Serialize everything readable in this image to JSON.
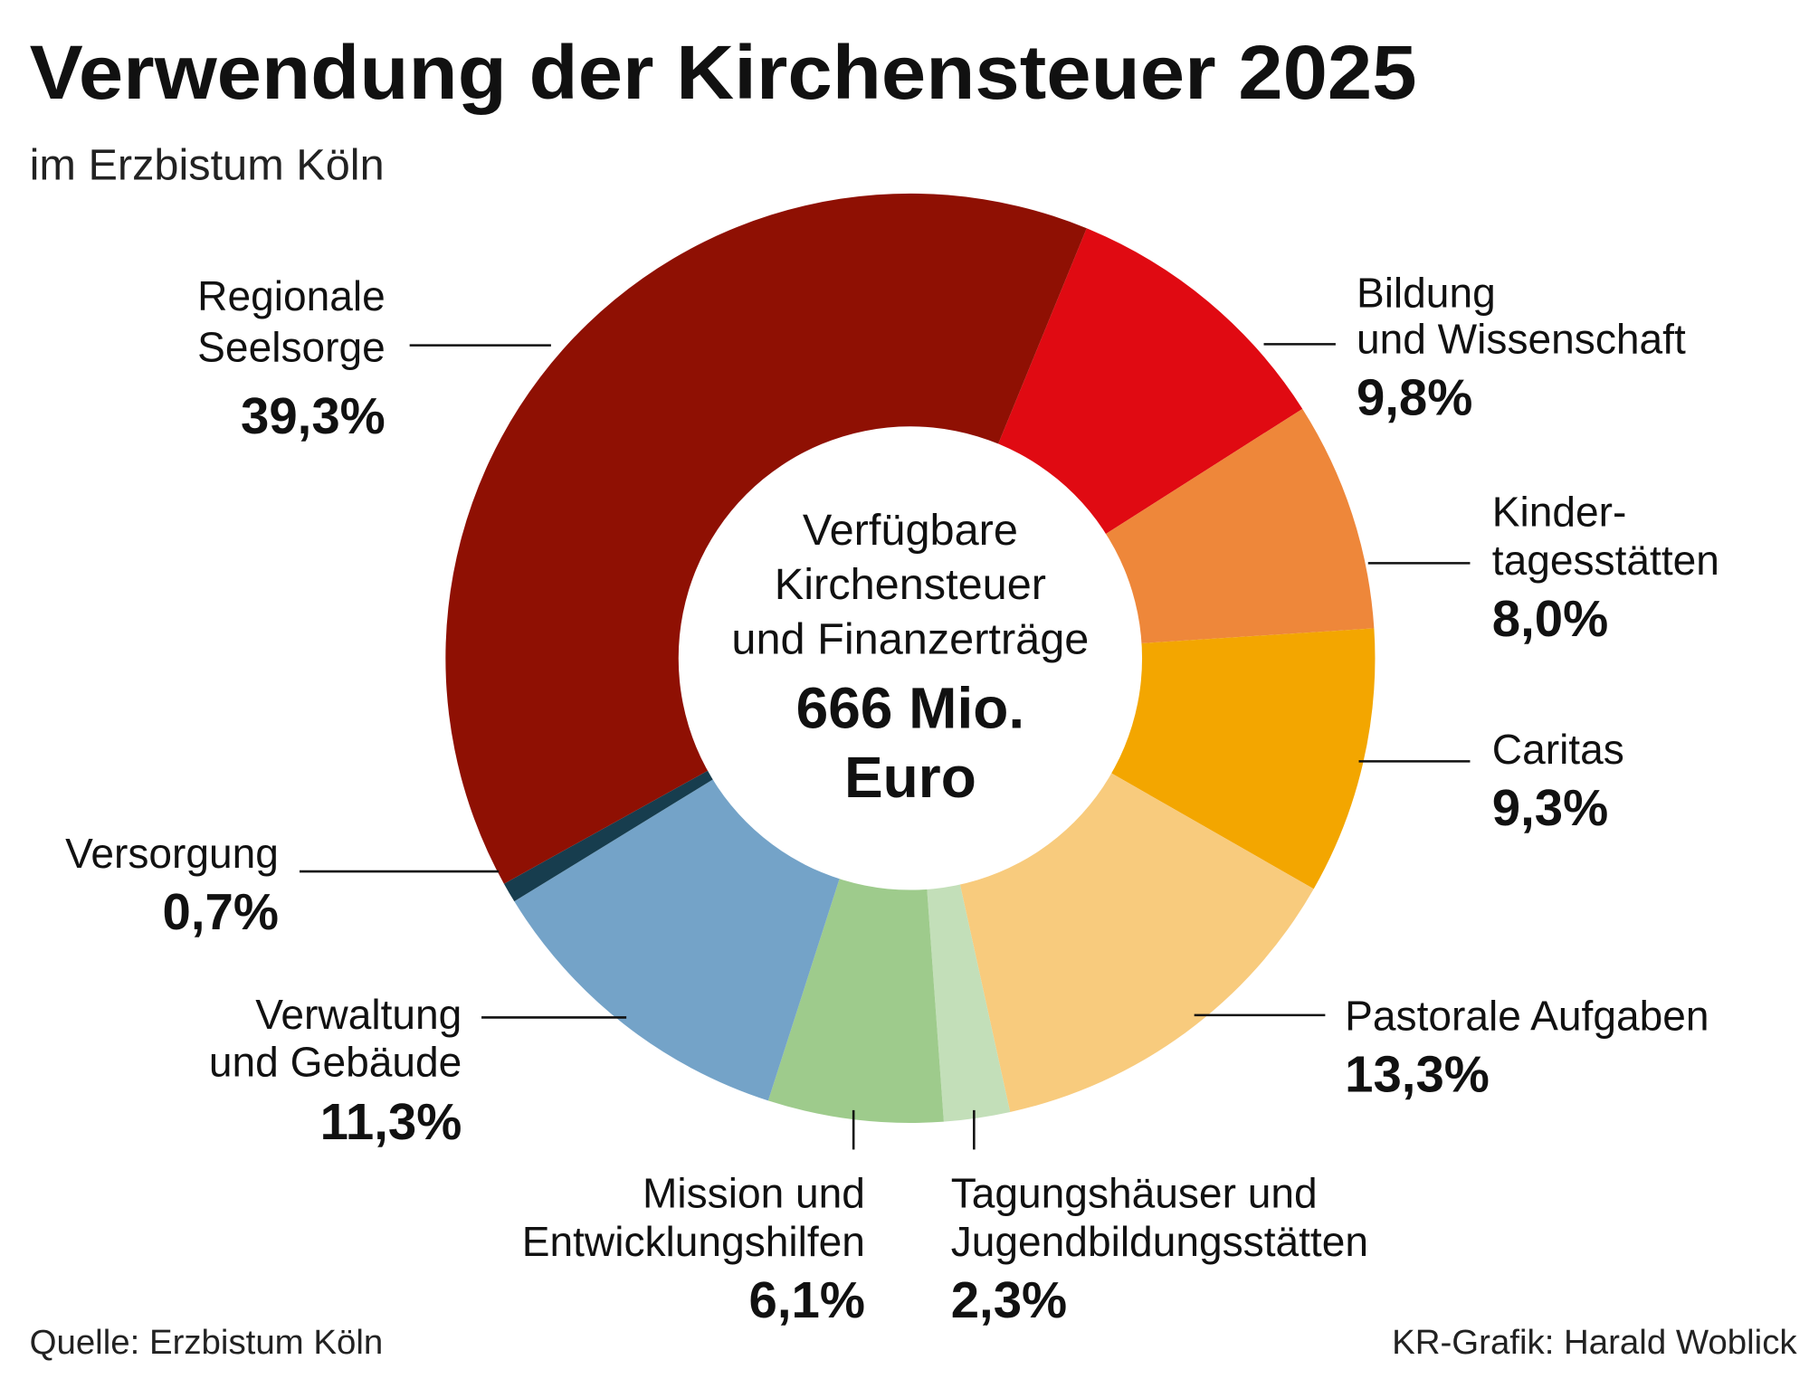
{
  "title": "Verwendung der Kirchensteuer 2025",
  "subtitle": "im Erzbistum Köln",
  "source": "Quelle: Erzbistum Köln",
  "credit": "KR-Grafik: Harald Woblick",
  "chart_data": {
    "type": "pie",
    "variant": "donut",
    "title": "Verwendung der Kirchensteuer 2025",
    "subtitle": "im Erzbistum Köln",
    "center_label": [
      "Verfügbare",
      "Kirchensteuer",
      "und Finanzerträge"
    ],
    "center_value": [
      "666 Mio.",
      "Euro"
    ],
    "unit": "%",
    "slices": [
      {
        "label": [
          "Bildung",
          "und Wissenschaft"
        ],
        "value": 9.8,
        "display": "9,8%",
        "color": "#e00a12"
      },
      {
        "label": [
          "Kinder-",
          "tagesstätten"
        ],
        "value": 8.0,
        "display": "8,0%",
        "color": "#ee873a"
      },
      {
        "label": [
          "Caritas"
        ],
        "value": 9.3,
        "display": "9,3%",
        "color": "#f3a600"
      },
      {
        "label": [
          "Pastorale Aufgaben"
        ],
        "value": 13.3,
        "display": "13,3%",
        "color": "#f8cb7d"
      },
      {
        "label": [
          "Tagungshäuser und",
          "Jugendbildungsstätten"
        ],
        "value": 2.3,
        "display": "2,3%",
        "color": "#c3dfb9"
      },
      {
        "label": [
          "Mission und",
          "Entwicklungshilfen"
        ],
        "value": 6.1,
        "display": "6,1%",
        "color": "#9ecb8c"
      },
      {
        "label": [
          "Verwaltung",
          "und Gebäude"
        ],
        "value": 11.3,
        "display": "11,3%",
        "color": "#74a3c8"
      },
      {
        "label": [
          "Versorgung"
        ],
        "value": 0.7,
        "display": "0,7%",
        "color": "#173d4e"
      },
      {
        "label": [
          "Regionale",
          "Seelsorge"
        ],
        "value": 39.3,
        "display": "39,3%",
        "color": "#8f1003"
      }
    ]
  }
}
